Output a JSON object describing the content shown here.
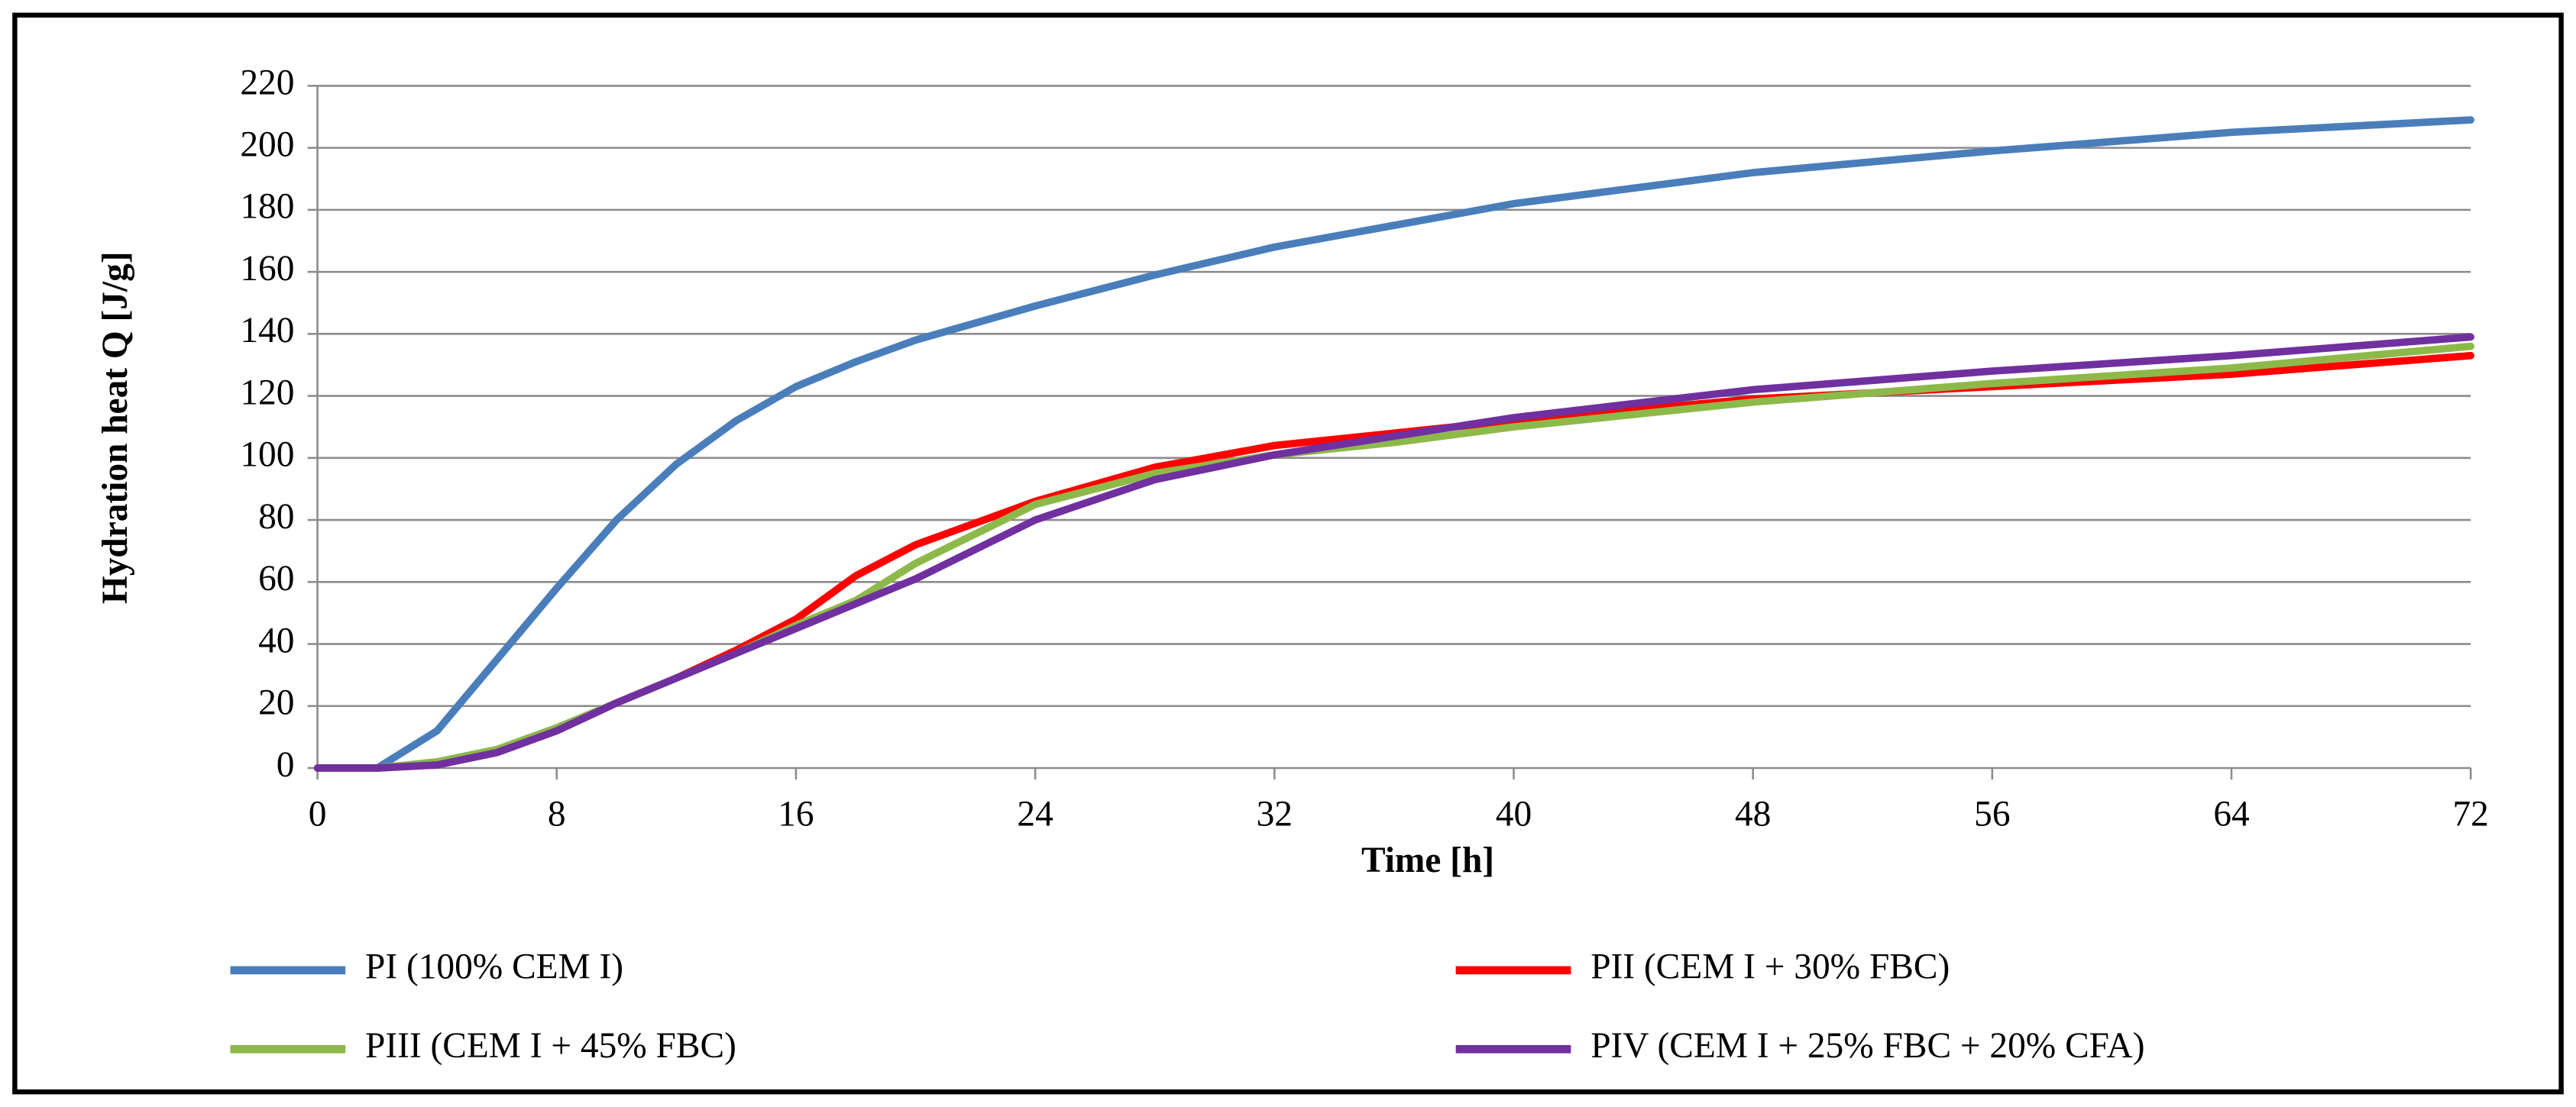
{
  "chart_data": {
    "type": "line",
    "xlabel": "Time [h]",
    "ylabel": "Hydration  heat Q [J/g]",
    "x": [
      0,
      2,
      4,
      6,
      8,
      10,
      12,
      14,
      16,
      18,
      20,
      24,
      28,
      32,
      36,
      40,
      48,
      56,
      64,
      72
    ],
    "series": [
      {
        "name": "PI (100% CEM I)",
        "color": "#4a7ebb",
        "values": [
          0,
          0,
          12,
          35,
          58,
          80,
          98,
          112,
          123,
          131,
          138,
          149,
          159,
          168,
          175,
          182,
          192,
          199,
          205,
          209
        ]
      },
      {
        "name": "PII (CEM I + 30% FBC)",
        "color": "#ff0000",
        "values": [
          0,
          0,
          1,
          5,
          12,
          21,
          29,
          38,
          48,
          62,
          72,
          86,
          97,
          104,
          108,
          112,
          119,
          123,
          127,
          133
        ]
      },
      {
        "name": "PIII (CEM I + 45% FBC)",
        "color": "#8db94a",
        "values": [
          0,
          0,
          2,
          6,
          13,
          21,
          29,
          37,
          46,
          54,
          66,
          85,
          95,
          101,
          105,
          110,
          118,
          124,
          129,
          136
        ]
      },
      {
        "name": "PIV (CEM I + 25% FBC + 20% CFA)",
        "color": "#7030a0",
        "values": [
          0,
          0,
          1,
          5,
          12,
          21,
          29,
          37,
          45,
          53,
          61,
          80,
          93,
          101,
          107,
          113,
          122,
          128,
          133,
          139
        ]
      }
    ],
    "xlim": [
      0,
      72
    ],
    "xticks": [
      0,
      8,
      16,
      24,
      32,
      40,
      48,
      56,
      64,
      72
    ],
    "ylim": [
      0,
      220
    ],
    "yticks": [
      0,
      20,
      40,
      60,
      80,
      100,
      120,
      140,
      160,
      180,
      200,
      220
    ],
    "grid": true,
    "legend": "bottom"
  }
}
